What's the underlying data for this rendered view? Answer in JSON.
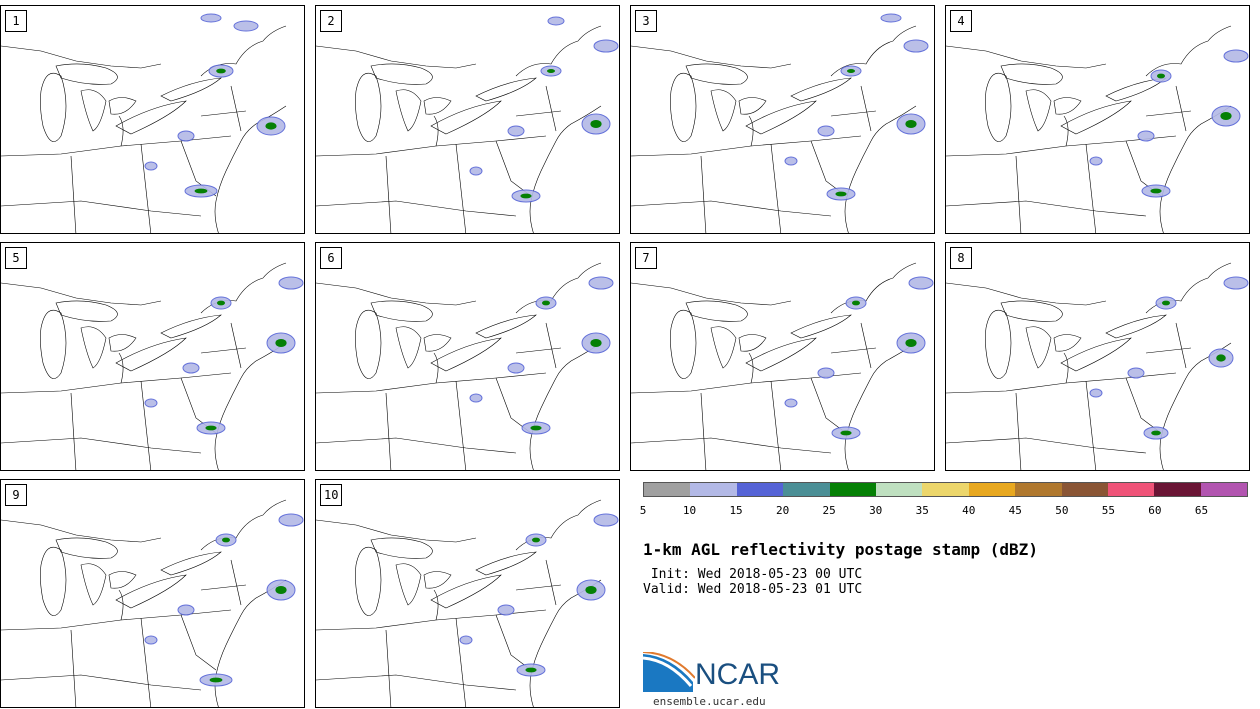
{
  "stamps": [
    {
      "label": "1"
    },
    {
      "label": "2"
    },
    {
      "label": "3"
    },
    {
      "label": "4"
    },
    {
      "label": "5"
    },
    {
      "label": "6"
    },
    {
      "label": "7"
    },
    {
      "label": "8"
    },
    {
      "label": "9"
    },
    {
      "label": "10"
    }
  ],
  "legend": {
    "ticks": [
      "5",
      "10",
      "15",
      "20",
      "25",
      "30",
      "35",
      "40",
      "45",
      "50",
      "55",
      "60",
      "65"
    ],
    "colors": [
      "#a0a0a0",
      "#b3b9e6",
      "#5563d6",
      "#4b8f96",
      "#058005",
      "#bfe0c0",
      "#ecd66b",
      "#e8a820",
      "#b0782e",
      "#8a5535",
      "#ef5378",
      "#6a1535",
      "#b255b0"
    ]
  },
  "title": "1-km AGL reflectivity postage stamp (dBZ)",
  "init_line": " Init: Wed 2018-05-23 00 UTC",
  "valid_line": "Valid: Wed 2018-05-23 01 UTC",
  "logo_text": "NCAR",
  "url": "ensemble.ucar.edu"
}
